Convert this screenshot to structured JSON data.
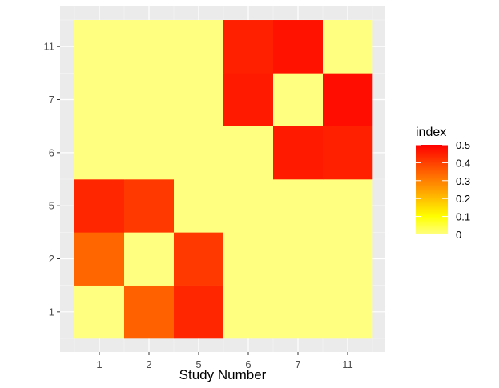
{
  "chart_data": {
    "type": "heatmap",
    "title": "",
    "xlabel": "Study Number",
    "ylabel": "",
    "x_categories": [
      "1",
      "2",
      "5",
      "6",
      "7",
      "11"
    ],
    "y_categories": [
      "1",
      "2",
      "5",
      "6",
      "7",
      "11"
    ],
    "grid": true,
    "legend": {
      "title": "index",
      "position": "right",
      "ticks": [
        "0",
        "0.1",
        "0.2",
        "0.3",
        "0.4",
        "0.5"
      ],
      "range": [
        0,
        0.5
      ],
      "low_color": "#FFFF80",
      "mid_color": "#FFFF00",
      "high_color": "#FF0000"
    },
    "values": [
      [
        0.0,
        0.35,
        0.44,
        0.0,
        0.0,
        0.0
      ],
      [
        0.34,
        0.0,
        0.41,
        0.0,
        0.0,
        0.0
      ],
      [
        0.44,
        0.41,
        0.0,
        0.0,
        0.0,
        0.0
      ],
      [
        0.0,
        0.0,
        0.0,
        0.0,
        0.46,
        0.45
      ],
      [
        0.0,
        0.0,
        0.0,
        0.46,
        0.0,
        0.48
      ],
      [
        0.0,
        0.0,
        0.0,
        0.45,
        0.47,
        0.0
      ]
    ]
  }
}
